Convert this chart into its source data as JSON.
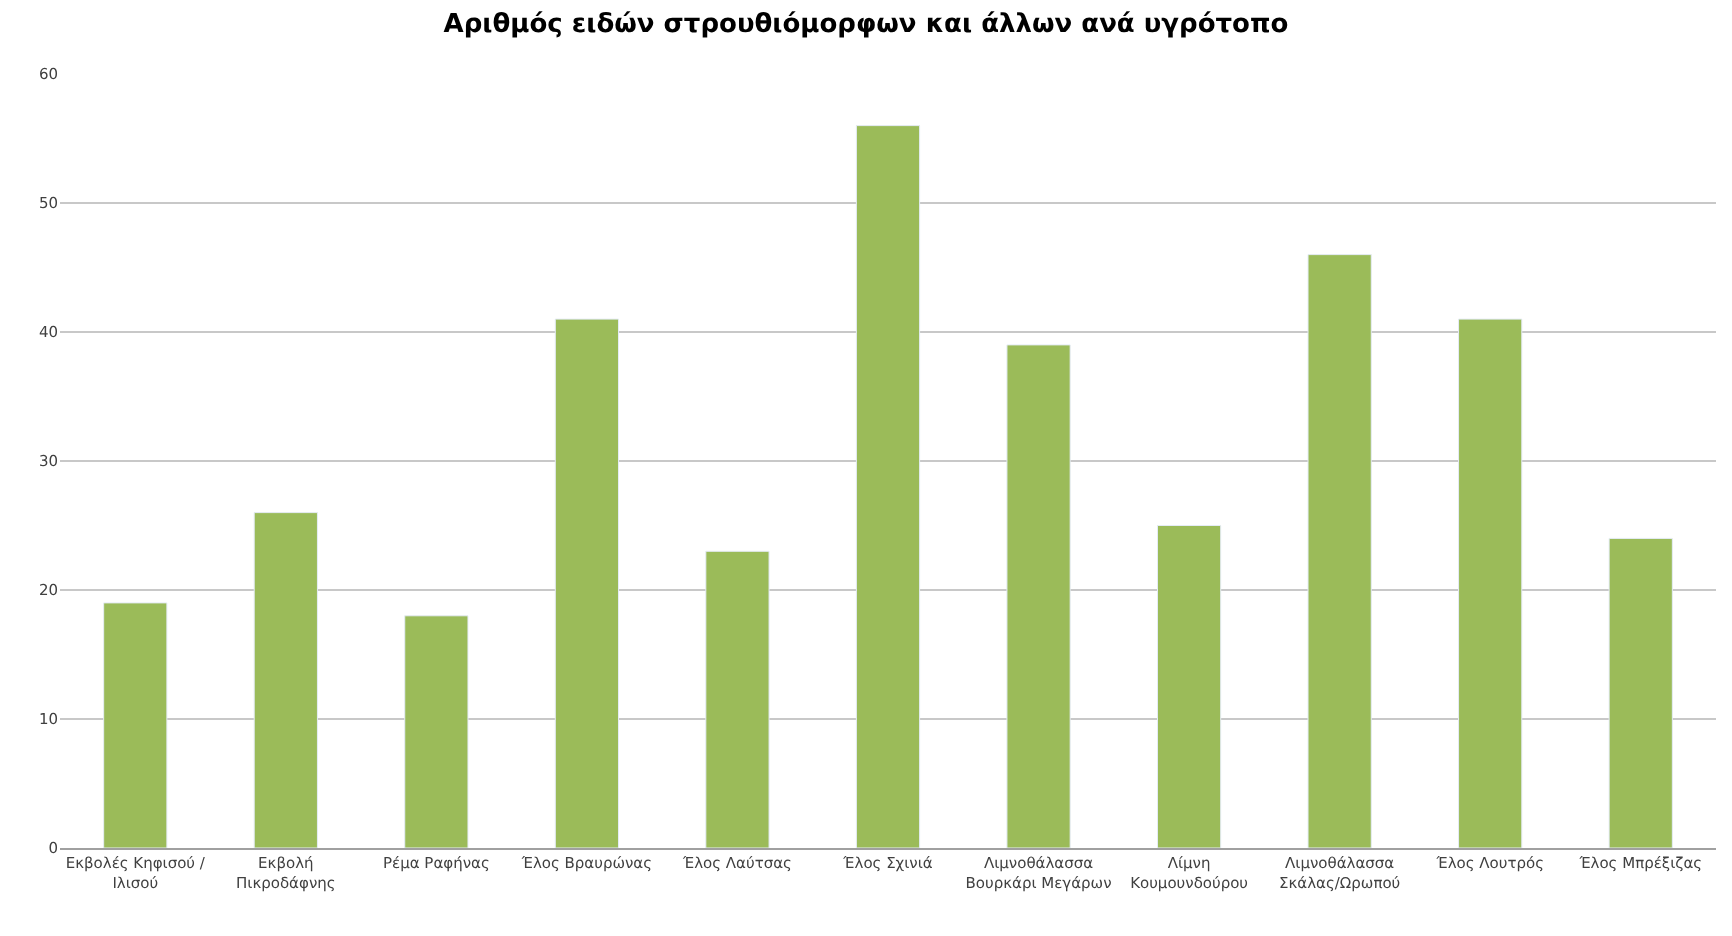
{
  "chart_data": {
    "type": "bar",
    "title": "Αριθμός ειδών στρουθιόμορφων και άλλων ανά υγρότοπο",
    "categories": [
      "Εκβολές Κηφισού / Ιλισού",
      "Εκβολή Πικροδάφνης",
      "Ρέμα Ραφήνας",
      "Έλος Βραυρώνας",
      "Έλος Λαύτσας",
      "Έλος Σχινιά",
      "Λιμνοθάλασσα Βουρκάρι Μεγάρων",
      "Λίμνη Κουμουνδούρου",
      "Λιμνοθάλασσα Σκάλας/Ωρωπού",
      "Έλος Λουτρός",
      "Έλος Μπρέξιζας"
    ],
    "values": [
      19,
      26,
      18,
      41,
      23,
      56,
      39,
      25,
      46,
      41,
      24
    ],
    "color": "#9bbb59",
    "ylim": [
      0,
      60
    ],
    "yticks": [
      0,
      10,
      20,
      30,
      40,
      50,
      60
    ],
    "grid": "y"
  }
}
